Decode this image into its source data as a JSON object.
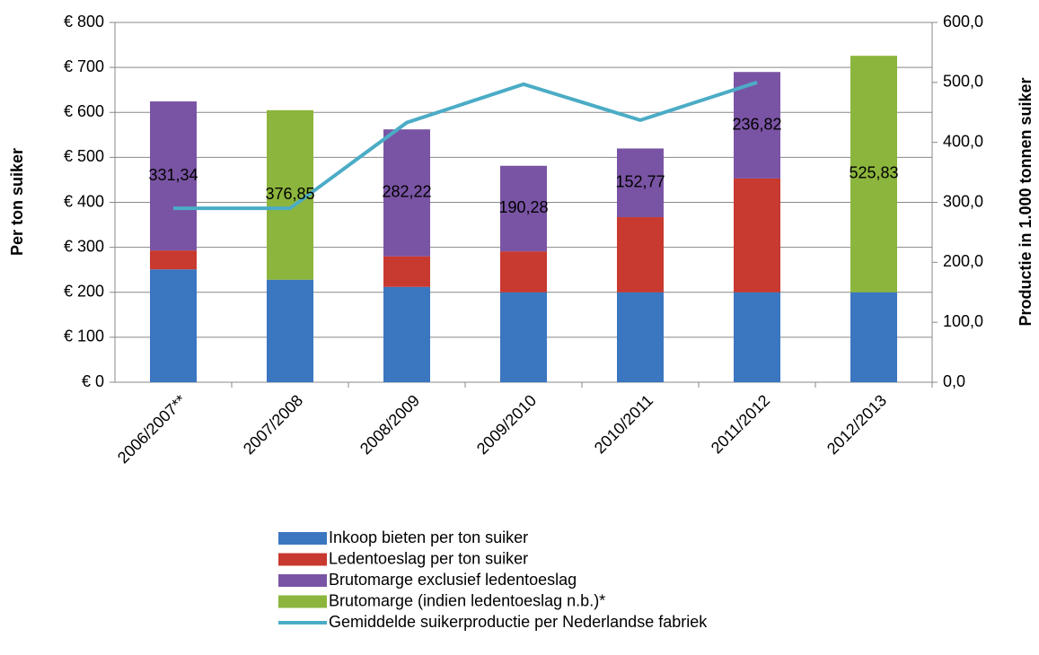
{
  "chart_data": {
    "type": "bar",
    "y_label": "Per ton suiker",
    "y2_label": "Productie in 1.000 tonnen suiker",
    "categories": [
      "2006/2007**",
      "2007/2008",
      "2008/2009",
      "2009/2010",
      "2010/2011",
      "2011/2012",
      "2012/2013"
    ],
    "stacked": true,
    "series": [
      {
        "name": "Inkoop bieten per ton suiker",
        "color": "#3b76c0",
        "values": [
          251,
          228,
          212,
          200,
          200,
          200,
          200
        ]
      },
      {
        "name": "Ledentoeslag per ton suiker",
        "color": "#c8392f",
        "values": [
          42,
          null,
          68,
          91,
          167,
          253,
          null
        ]
      },
      {
        "name": "Brutomarge exclusief ledentoeslag",
        "color": "#7a54a4",
        "values": [
          331.34,
          null,
          282.22,
          190.28,
          152.77,
          236.82,
          null
        ],
        "value_labels": [
          "331,34",
          null,
          "282,22",
          "190,28",
          "152,77",
          "236,82",
          null
        ]
      },
      {
        "name": "Brutomarge (indien ledentoeslag n.b.)*",
        "color": "#8cb53d",
        "values": [
          null,
          376.85,
          null,
          null,
          null,
          null,
          525.83
        ],
        "value_labels": [
          null,
          "376,85",
          null,
          null,
          null,
          null,
          "525,83"
        ]
      },
      {
        "name": "Gemiddelde suikerproductie per Nederlandse fabriek",
        "color": "#4bacc6",
        "type": "line",
        "axis": "y2",
        "values": [
          290,
          290,
          433,
          497,
          437,
          500,
          null
        ]
      }
    ],
    "ylim": [
      0,
      800
    ],
    "yticks": [
      {
        "value": 0,
        "label": "€ 0"
      },
      {
        "value": 100,
        "label": "€ 100"
      },
      {
        "value": 200,
        "label": "€ 200"
      },
      {
        "value": 300,
        "label": "€ 300"
      },
      {
        "value": 400,
        "label": "€ 400"
      },
      {
        "value": 500,
        "label": "€ 500"
      },
      {
        "value": 600,
        "label": "€ 600"
      },
      {
        "value": 700,
        "label": "€ 700"
      },
      {
        "value": 800,
        "label": "€ 800"
      }
    ],
    "y2lim": [
      0,
      600
    ],
    "y2ticks": [
      {
        "value": 0,
        "label": "0,0"
      },
      {
        "value": 100,
        "label": "100,0"
      },
      {
        "value": 200,
        "label": "200,0"
      },
      {
        "value": 300,
        "label": "300,0"
      },
      {
        "value": 400,
        "label": "400,0"
      },
      {
        "value": 500,
        "label": "500,0"
      },
      {
        "value": 600,
        "label": "600,0"
      }
    ],
    "grid": true
  }
}
